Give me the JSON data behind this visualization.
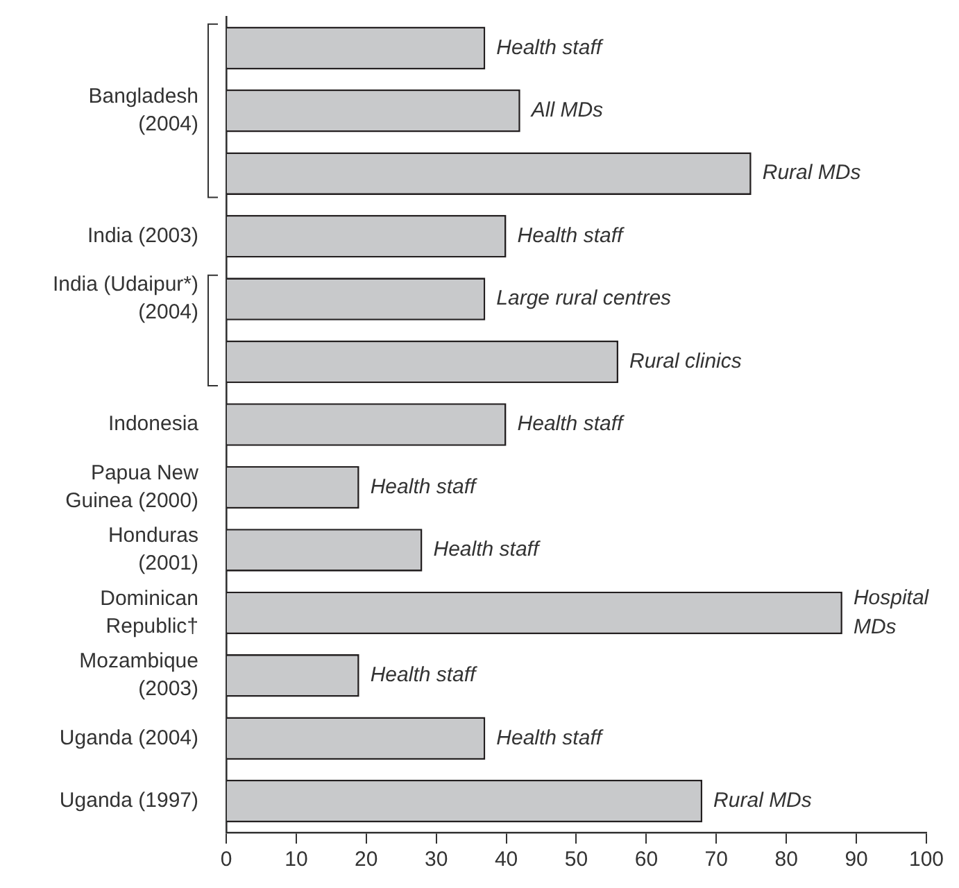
{
  "chart_data": {
    "type": "bar",
    "orientation": "horizontal",
    "categories": [
      null,
      "Bangladesh (2004)",
      null,
      "India (2003)",
      "India (Udaipur*) (2004)",
      null,
      "Indonesia",
      "Papua New Guinea (2000)",
      "Honduras (2001)",
      "Dominican Republic†",
      "Mozambique (2003)",
      "Uganda (2004)",
      "Uganda (1997)"
    ],
    "values": [
      37,
      42,
      75,
      40,
      37,
      56,
      40,
      19,
      28,
      88,
      19,
      37,
      68
    ],
    "value_labels": [
      "Health staff",
      "All MDs",
      "Rural MDs",
      "Health staff",
      "Large rural centres",
      "Rural clinics",
      "Health staff",
      "Health staff",
      "Health staff",
      "Hospital MDs",
      "Health staff",
      "Health staff",
      "Rural MDs"
    ],
    "color": "#c8c9cb",
    "xlim": [
      0,
      100
    ],
    "xticks": [
      0,
      10,
      20,
      30,
      40,
      50,
      60,
      70,
      80,
      90,
      100
    ],
    "grid": false
  }
}
